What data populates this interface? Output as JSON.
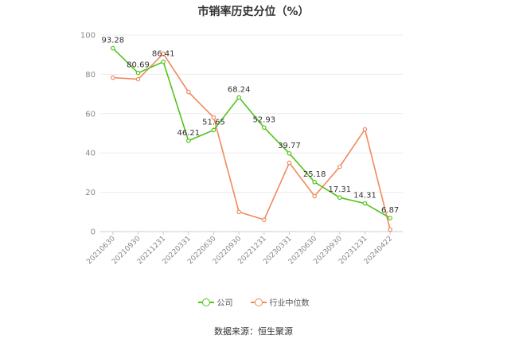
{
  "chart_data": {
    "type": "line",
    "title": "市销率历史分位（%）",
    "categories": [
      "20210630",
      "20210930",
      "20211231",
      "20220331",
      "20220630",
      "20220930",
      "20221231",
      "20230331",
      "20230630",
      "20230930",
      "20231231",
      "20240422"
    ],
    "ylim": [
      0,
      100
    ],
    "yticks": [
      0,
      20,
      40,
      60,
      80,
      100
    ],
    "grid": true,
    "legend_position": "bottom",
    "series": [
      {
        "name": "公司",
        "color": "#52c41a",
        "labels": true,
        "values": [
          93.28,
          80.69,
          86.41,
          46.21,
          51.65,
          68.24,
          52.93,
          39.77,
          25.18,
          17.31,
          14.31,
          6.87
        ]
      },
      {
        "name": "行业中位数",
        "color": "#f08a5d",
        "labels": false,
        "values": [
          78.3,
          77.5,
          90.5,
          71,
          58,
          10,
          6,
          35,
          18,
          33,
          52,
          1
        ]
      }
    ],
    "source": "数据来源：恒生聚源"
  }
}
